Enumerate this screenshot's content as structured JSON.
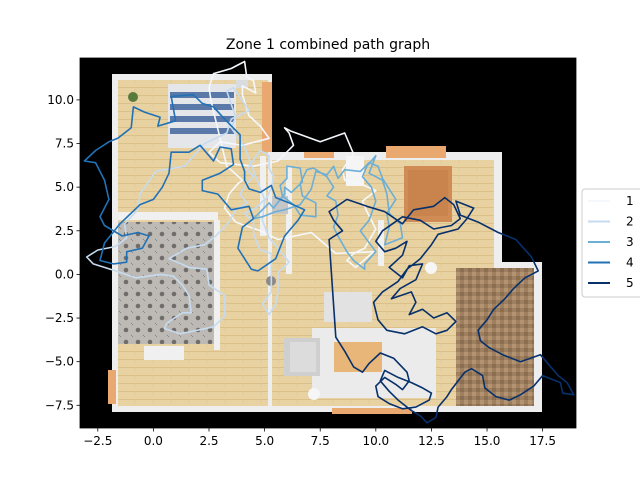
{
  "chart_data": {
    "type": "line",
    "title": "Zone 1 combined path graph",
    "xlabel": "",
    "ylabel": "",
    "xlim": [
      -3.3,
      19.0
    ],
    "ylim": [
      -8.8,
      12.4
    ],
    "x_ticks": [
      -2.5,
      0.0,
      2.5,
      5.0,
      7.5,
      10.0,
      12.5,
      15.0,
      17.5
    ],
    "x_tick_labels": [
      "−2.5",
      "0.0",
      "2.5",
      "5.0",
      "7.5",
      "10.0",
      "12.5",
      "15.0",
      "17.5"
    ],
    "y_ticks": [
      -7.5,
      -5.0,
      -2.5,
      0.0,
      2.5,
      5.0,
      7.5,
      10.0
    ],
    "y_tick_labels": [
      "−7.5",
      "−5.0",
      "−2.5",
      "0.0",
      "2.5",
      "5.0",
      "7.5",
      "10.0"
    ],
    "grid": false,
    "legend_placement": "right",
    "background_image": "floor-plan",
    "series": [
      {
        "name": "1",
        "color": "#f4f8fd",
        "x": [
          2.6,
          2.5,
          2.7,
          3.5,
          4.1,
          4.2,
          4.5,
          4.6,
          4.0,
          4.0,
          4.3,
          4.8,
          5.2,
          4.0,
          3.0,
          2.5,
          3.0,
          4.5,
          5.6,
          6.3,
          6.1,
          5.9,
          6.2,
          7.5,
          8.6,
          9.0,
          8.5,
          8.6,
          9.3,
          10.0,
          9.4,
          9.6,
          10.0,
          9.5,
          9.0,
          8.7,
          9.1,
          9.9,
          8.2,
          7.1,
          5.6,
          4.8,
          3.7,
          3.2,
          3.4,
          3.8,
          4.0,
          3.3,
          2.6
        ],
        "y": [
          9.9,
          10.7,
          11.5,
          11.8,
          12.2,
          11.3,
          11.1,
          10.4,
          10.8,
          10.3,
          9.1,
          8.5,
          7.8,
          7.4,
          7.6,
          7.0,
          6.4,
          6.2,
          6.5,
          7.4,
          8.1,
          8.4,
          8.2,
          7.6,
          8.1,
          6.9,
          6.0,
          5.4,
          5.2,
          4.8,
          4.2,
          3.6,
          2.6,
          1.5,
          1.2,
          0.8,
          0.4,
          1.3,
          1.2,
          2.4,
          2.0,
          2.5,
          3.0,
          3.8,
          4.6,
          5.2,
          5.4,
          6.2,
          9.9
        ]
      },
      {
        "name": "2",
        "color": "#c6dbef",
        "x": [
          -1.7,
          -0.8,
          0.3,
          0.9,
          1.3,
          1.6,
          1.7,
          1.3,
          0.6,
          0.5,
          1.2,
          1.6,
          2.7,
          3.2,
          3.2,
          2.5,
          2.4,
          1.6,
          0.7,
          1.5,
          2.3,
          2.8,
          3.4,
          3.7,
          4.2,
          3.9,
          4.2,
          4.5,
          4.2,
          4.8,
          5.2,
          5.2,
          5.4,
          5.3,
          5.0,
          4.9,
          5.2,
          5.6,
          6.1,
          5.6,
          5.6,
          5.5,
          5.2,
          4.9,
          5.3,
          5.3,
          5.3,
          4.8,
          4.5,
          4.5,
          4.1,
          4.6,
          5.0,
          4.6,
          4.1,
          3.5,
          3.7,
          3.3,
          3.6,
          4.3,
          3.5,
          3.3,
          2.3,
          1.4,
          0.1,
          -0.6,
          -0.7,
          -1.3,
          -1.2,
          -1.7,
          -2.5,
          -3.0,
          -2.7,
          -1.7
        ],
        "y": [
          0.2,
          -0.2,
          0.0,
          -0.1,
          -0.6,
          -1.2,
          -2.2,
          -2.2,
          -2.8,
          -3.1,
          -3.4,
          -3.3,
          -3.0,
          -2.4,
          -1.2,
          -0.6,
          0.3,
          0.4,
          0.9,
          1.5,
          1.7,
          2.2,
          3.0,
          3.7,
          4.1,
          4.6,
          5.2,
          5.6,
          6.0,
          7.1,
          6.8,
          6.1,
          5.6,
          4.9,
          4.2,
          3.1,
          2.1,
          1.5,
          0.7,
          0.1,
          -1.0,
          -1.7,
          -2.3,
          -1.7,
          -1.0,
          0.5,
          1.2,
          1.4,
          2.3,
          3.0,
          3.5,
          3.8,
          4.3,
          5.6,
          7.3,
          8.4,
          9.0,
          10.5,
          10.7,
          9.4,
          8.9,
          8.1,
          7.5,
          6.2,
          5.9,
          4.6,
          3.7,
          2.9,
          2.1,
          1.6,
          1.4,
          1.0,
          0.6,
          0.2
        ]
      },
      {
        "name": "3",
        "color": "#6baed6",
        "x": [
          4.5,
          5.2,
          5.4,
          5.9,
          5.9,
          6.2,
          6.7,
          6.6,
          6.0,
          6.0,
          5.7,
          5.8,
          6.3,
          6.6,
          7.3,
          7.3,
          6.7,
          6.6,
          6.9,
          7.2,
          7.8,
          8.1,
          7.8,
          8.2,
          8.3,
          8.1,
          8.3,
          8.7,
          9.0,
          9.5,
          9.5,
          10.0,
          9.3,
          9.7,
          10.0,
          9.8,
          9.4,
          9.6,
          10.0,
          9.7,
          10.3,
          10.5,
          10.6,
          11.1,
          11.2,
          10.4,
          10.6,
          10.5,
          10.9,
          10.3,
          10.1,
          9.7,
          9.3,
          8.6,
          8.3,
          8.1,
          7.8,
          7.3,
          7.1,
          6.6,
          5.9,
          5.5,
          4.9,
          4.5
        ],
        "y": [
          3.2,
          4.1,
          3.8,
          4.6,
          5.0,
          4.7,
          5.3,
          6.1,
          6.2,
          5.5,
          5.1,
          4.5,
          4.0,
          3.4,
          3.3,
          4.1,
          4.5,
          5.2,
          6.0,
          6.1,
          5.6,
          5.0,
          4.5,
          4.2,
          3.4,
          2.7,
          2.2,
          1.3,
          0.8,
          0.3,
          0.6,
          1.3,
          2.5,
          3.1,
          4.2,
          5.0,
          5.6,
          6.2,
          6.8,
          5.8,
          5.4,
          4.6,
          3.5,
          2.9,
          2.1,
          1.7,
          2.7,
          3.5,
          4.3,
          5.5,
          6.2,
          6.4,
          5.9,
          6.0,
          5.5,
          6.2,
          5.7,
          5.9,
          4.9,
          4.0,
          3.7,
          3.6,
          3.3,
          3.2
        ]
      },
      {
        "name": "4",
        "color": "#2171b5",
        "x": [
          -3.1,
          -2.6,
          -2.2,
          -2.0,
          -2.4,
          -2.2,
          -1.4,
          -0.7,
          -0.2,
          -0.5,
          -1.2,
          -1.2,
          -1.8,
          -2.4,
          -2.2,
          -1.5,
          -0.6,
          0.0,
          0.4,
          0.7,
          0.8,
          1.6,
          2.1,
          2.7,
          3.0,
          3.5,
          3.6,
          3.0,
          2.2,
          2.2,
          2.9,
          3.5,
          4.3,
          4.5,
          4.0,
          3.8,
          4.4,
          4.7,
          5.5,
          5.9,
          6.5,
          6.8,
          6.1,
          5.5,
          5.3,
          4.8,
          4.3,
          4.1,
          4.1,
          3.9,
          3.9,
          3.2,
          2.7,
          2.2,
          1.8,
          0.8,
          1.0,
          0.2,
          0.3,
          -0.4,
          -0.9,
          -1.0,
          -1.6,
          -2.0,
          -2.6,
          -3.1
        ],
        "y": [
          6.5,
          6.4,
          5.4,
          4.3,
          3.3,
          2.8,
          2.2,
          2.4,
          2.2,
          1.5,
          1.3,
          0.7,
          0.6,
          0.8,
          1.8,
          2.9,
          4.0,
          4.3,
          5.0,
          5.8,
          7.0,
          7.0,
          7.4,
          6.5,
          7.3,
          7.2,
          6.3,
          5.8,
          5.4,
          4.8,
          4.6,
          3.7,
          3.9,
          3.2,
          2.7,
          1.5,
          0.3,
          0.2,
          0.9,
          2.2,
          3.1,
          3.7,
          4.1,
          4.4,
          5.1,
          4.7,
          4.9,
          5.4,
          5.9,
          6.6,
          8.0,
          8.9,
          9.6,
          9.8,
          10.3,
          10.2,
          8.8,
          8.5,
          9.0,
          9.3,
          9.6,
          8.4,
          7.8,
          7.6,
          7.1,
          6.5
        ]
      },
      {
        "name": "5",
        "color": "#08306b",
        "x": [
          7.9,
          8.5,
          8.1,
          7.9,
          8.7,
          9.6,
          10.4,
          11.2,
          11.7,
          12.6,
          13.1,
          13.5,
          13.8,
          13.4,
          12.6,
          12.0,
          11.2,
          10.3,
          10.0,
          10.4,
          10.9,
          11.4,
          11.2,
          10.6,
          11.2,
          11.5,
          12.1,
          11.8,
          11.1,
          10.7,
          11.6,
          11.8,
          11.5,
          12.1,
          12.6,
          13.2,
          13.6,
          13.2,
          12.7,
          12.1,
          11.3,
          10.5,
          10.1,
          9.9,
          10.3,
          11.0,
          11.4,
          12.0,
          12.5,
          12.8,
          13.7,
          14.1,
          14.4,
          13.6,
          13.8,
          14.6,
          15.5,
          16.3,
          17.0,
          17.3,
          16.7,
          16.2,
          15.8,
          15.3,
          15.0,
          14.6,
          14.7,
          15.1,
          15.7,
          16.5,
          17.4,
          17.8,
          18.2,
          18.6,
          18.9,
          18.4,
          18.3,
          17.5,
          17.1,
          16.5,
          16.0,
          15.4,
          14.9,
          14.8,
          14.3,
          14.0,
          13.7,
          13.4,
          13.2,
          12.8,
          12.7,
          12.3,
          12.0,
          11.6,
          11.0,
          10.6,
          10.2,
          10.4,
          11.0,
          11.6,
          12.1,
          12.5,
          12.4,
          11.8,
          11.2,
          10.6,
          10.1,
          10.0,
          10.4,
          10.9,
          11.2,
          11.5,
          11.4,
          10.8,
          10.2,
          9.7,
          9.4,
          9.0,
          8.6,
          8.2,
          7.9
        ],
        "y": [
          2.0,
          2.5,
          3.1,
          3.6,
          4.3,
          3.9,
          3.6,
          2.9,
          3.7,
          3.9,
          4.4,
          4.0,
          3.2,
          2.8,
          2.6,
          3.1,
          3.3,
          2.5,
          1.9,
          1.3,
          1.5,
          1.9,
          1.1,
          0.4,
          -0.2,
          0.5,
          0.6,
          -0.3,
          -0.8,
          -1.4,
          -1.0,
          -1.6,
          -2.3,
          -2.0,
          -2.5,
          -2.2,
          -2.7,
          -3.2,
          -3.4,
          -3.0,
          -3.4,
          -3.2,
          -2.6,
          -1.6,
          -1.0,
          -0.4,
          0.3,
          0.9,
          1.7,
          2.3,
          2.6,
          3.2,
          3.8,
          4.2,
          3.4,
          3.0,
          2.4,
          2.0,
          1.0,
          0.2,
          -0.2,
          -0.8,
          -1.4,
          -2.0,
          -2.6,
          -3.2,
          -3.8,
          -4.2,
          -4.6,
          -5.0,
          -4.6,
          -5.2,
          -5.8,
          -6.2,
          -6.9,
          -6.8,
          -6.2,
          -5.8,
          -6.4,
          -6.9,
          -7.2,
          -7.0,
          -6.5,
          -5.8,
          -5.4,
          -5.6,
          -6.1,
          -6.6,
          -7.0,
          -7.6,
          -8.2,
          -8.5,
          -8.1,
          -7.8,
          -7.2,
          -6.7,
          -6.1,
          -5.5,
          -5.9,
          -6.2,
          -6.5,
          -6.8,
          -7.2,
          -7.6,
          -7.7,
          -7.4,
          -7.0,
          -6.4,
          -5.9,
          -6.3,
          -6.6,
          -6.1,
          -5.6,
          -4.8,
          -4.5,
          -5.1,
          -5.6,
          -5.3,
          -4.4,
          -3.6,
          2.0
        ]
      }
    ]
  }
}
